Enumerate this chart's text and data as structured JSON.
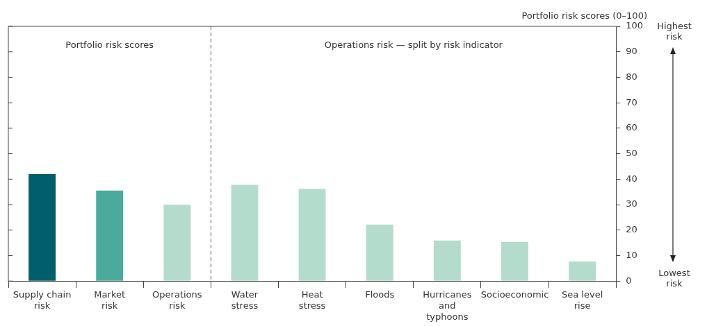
{
  "chart_data": {
    "type": "bar",
    "ylabel": "Portfolio risk scores (0–100)",
    "categories": [
      "Supply chain\nrisk",
      "Market\nrisk",
      "Operations\nrisk",
      "Water\nstress",
      "Heat\nstress",
      "Floods",
      "Hurricanes\nand\ntyphoons",
      "Socioeconomic",
      "Sea level\nrise"
    ],
    "values": [
      42,
      35.5,
      30,
      37.8,
      36.2,
      22.2,
      15.9,
      15.3,
      7.7
    ],
    "colors": [
      "#005f6b",
      "#4aab9d",
      "#b3dccd",
      "#b3dccd",
      "#b3dccd",
      "#b3dccd",
      "#b3dccd",
      "#b3dccd",
      "#b3dccd"
    ],
    "ylim": [
      0,
      100
    ],
    "yticks": [
      0,
      10,
      20,
      30,
      40,
      50,
      60,
      70,
      80,
      90,
      100
    ],
    "grid": false,
    "legend": false,
    "annotations": [
      "Portfolio risk scores",
      "Operations risk — split by risk indicator",
      "Highest\nrisk",
      "Lowest\nrisk"
    ]
  }
}
